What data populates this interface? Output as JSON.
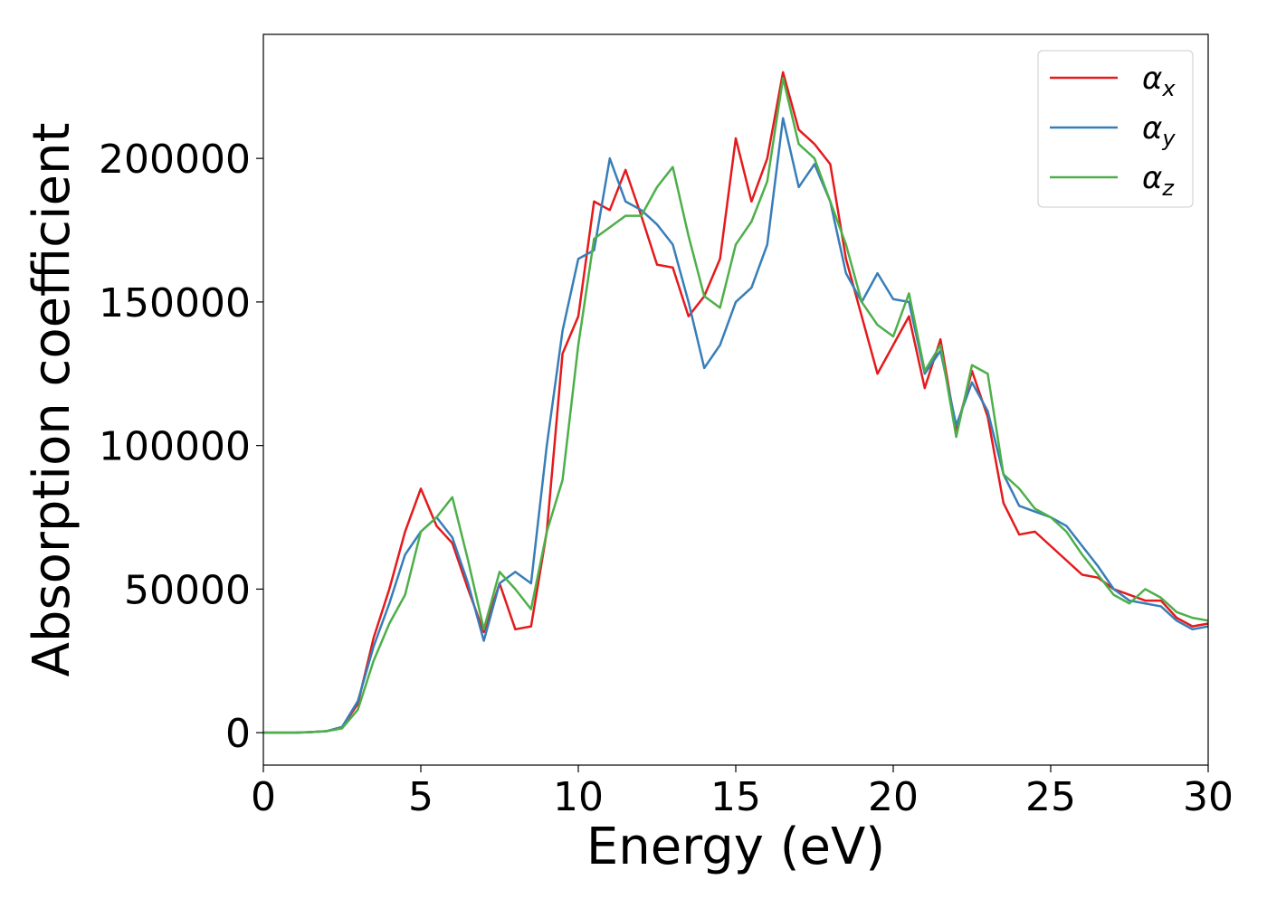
{
  "chart_data": {
    "type": "line",
    "x_label": "Energy (eV)",
    "y_label": "Absorption coefficient",
    "x": [
      0,
      0.5,
      1,
      1.5,
      2,
      2.5,
      3,
      3.5,
      4,
      4.5,
      5,
      5.5,
      6,
      6.5,
      7,
      7.5,
      8,
      8.5,
      9,
      9.5,
      10,
      10.5,
      11,
      11.5,
      12,
      12.5,
      13,
      13.5,
      14,
      14.5,
      15,
      15.5,
      16,
      16.5,
      17,
      17.5,
      18,
      18.5,
      19,
      19.5,
      20,
      20.5,
      21,
      21.5,
      22,
      22.5,
      23,
      23.5,
      24,
      24.5,
      25,
      25.5,
      26,
      26.5,
      27,
      27.5,
      28,
      28.5,
      29,
      29.5,
      30
    ],
    "series": [
      {
        "name": "αx",
        "color": "#e41a1c",
        "values": [
          0,
          0,
          0,
          200,
          500,
          2000,
          10000,
          33000,
          50000,
          70000,
          85000,
          72000,
          66000,
          50000,
          35000,
          52000,
          36000,
          37000,
          70000,
          132000,
          145000,
          185000,
          182000,
          196000,
          180000,
          163000,
          162000,
          145000,
          152000,
          165000,
          207000,
          185000,
          200000,
          230000,
          210000,
          205000,
          198000,
          165000,
          145000,
          125000,
          135000,
          145000,
          120000,
          137000,
          105000,
          126000,
          110000,
          80000,
          69000,
          70000,
          65000,
          60000,
          55000,
          54000,
          50000,
          48000,
          46000,
          46000,
          40000,
          37000,
          38000
        ]
      },
      {
        "name": "αy",
        "color": "#377eb8",
        "values": [
          0,
          0,
          0,
          200,
          500,
          2000,
          11000,
          30000,
          45000,
          62000,
          70000,
          75000,
          68000,
          52000,
          32000,
          52000,
          56000,
          52000,
          100000,
          140000,
          165000,
          168000,
          200000,
          185000,
          182000,
          177000,
          170000,
          150000,
          127000,
          135000,
          150000,
          155000,
          170000,
          214000,
          190000,
          198000,
          185000,
          160000,
          150000,
          160000,
          151000,
          150000,
          125000,
          133000,
          107000,
          122000,
          112000,
          90000,
          79000,
          77000,
          75000,
          72000,
          65000,
          58000,
          50000,
          46000,
          45000,
          44000,
          39000,
          36000,
          37000
        ]
      },
      {
        "name": "αz",
        "color": "#4daf4a",
        "values": [
          0,
          0,
          0,
          200,
          500,
          1500,
          8000,
          25000,
          38000,
          48000,
          70000,
          75000,
          82000,
          60000,
          36000,
          56000,
          50000,
          43000,
          70000,
          88000,
          135000,
          172000,
          176000,
          180000,
          180000,
          190000,
          197000,
          173000,
          152000,
          148000,
          170000,
          178000,
          192000,
          228000,
          205000,
          200000,
          185000,
          170000,
          150000,
          142000,
          138000,
          153000,
          126000,
          135000,
          103000,
          128000,
          125000,
          90000,
          85000,
          78000,
          75000,
          70000,
          62000,
          55000,
          48000,
          45000,
          50000,
          47000,
          42000,
          40000,
          39000
        ]
      }
    ],
    "xlim": [
      0,
      30
    ],
    "xticks": [
      0,
      5,
      10,
      15,
      20,
      25,
      30
    ],
    "ylim": [
      -11300,
      243200
    ],
    "yticks": [
      0,
      50000,
      100000,
      150000,
      200000
    ],
    "legend": "upper right",
    "grid": false
  }
}
